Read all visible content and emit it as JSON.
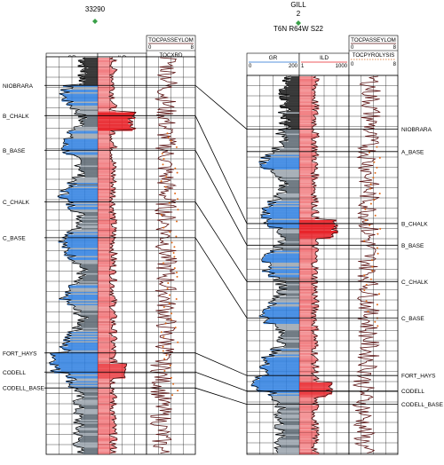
{
  "wells": [
    {
      "id": "well-1",
      "labels": [
        "33290"
      ],
      "tracks": {
        "gr": {
          "label": "GR",
          "min": "0",
          "max": "200"
        },
        "ild": {
          "label": "ILD",
          "min": "1",
          "max": "1000"
        },
        "toc_top": {
          "label": "TOCPASSEYLOM",
          "min": "0",
          "max": "8"
        },
        "toc_bottom": {
          "label": "TOCXRD",
          "min": "0",
          "max": "8"
        }
      },
      "tops": [
        {
          "name": "NIOBRARA",
          "depth": 0.072
        },
        {
          "name": "B_CHALK",
          "depth": 0.148
        },
        {
          "name": "B_BASE",
          "depth": 0.235
        },
        {
          "name": "C_CHALK",
          "depth": 0.365
        },
        {
          "name": "C_BASE",
          "depth": 0.455
        },
        {
          "name": "FORT_HAYS",
          "depth": 0.745
        },
        {
          "name": "CODELL",
          "depth": 0.793
        },
        {
          "name": "CODELL_BASE",
          "depth": 0.833
        }
      ]
    },
    {
      "id": "well-2",
      "labels": [
        "GILL",
        "2",
        "T6N R64W S22"
      ],
      "tracks": {
        "gr": {
          "label": "GR",
          "min": "0",
          "max": "200"
        },
        "ild": {
          "label": "ILD",
          "min": "1",
          "max": "1000"
        },
        "toc_top": {
          "label": "TOCPASSEYLOM",
          "min": "0",
          "max": "8"
        },
        "toc_bottom": {
          "label": "TOCPYROLYSIS",
          "min": "0",
          "max": "8"
        }
      },
      "tops": [
        {
          "name": "NIOBRARA",
          "depth": 0.142
        },
        {
          "name": "A_BASE",
          "depth": 0.201
        },
        {
          "name": "B_CHALK",
          "depth": 0.391
        },
        {
          "name": "B_BASE",
          "depth": 0.448
        },
        {
          "name": "C_CHALK",
          "depth": 0.544
        },
        {
          "name": "C_BASE",
          "depth": 0.64
        },
        {
          "name": "FORT_HAYS",
          "depth": 0.792
        },
        {
          "name": "CODELL",
          "depth": 0.833
        },
        {
          "name": "CODELL_BASE",
          "depth": 0.868
        }
      ]
    }
  ],
  "colors": {
    "gr_fill_low": "#2e7fe0",
    "gr_fill_high": "#1a1a1a",
    "gr_mid": "#9aa3ad",
    "ild": "#e8242a",
    "toc_curve": "#5a1010",
    "toc_points": "#e06a1a",
    "marker": "#3aa048"
  },
  "chart_data": {
    "type": "line",
    "title": "",
    "xlabel": "",
    "ylabel": "",
    "correlation": [
      {
        "top": "NIOBRARA",
        "well_1": 0.072,
        "well_2": 0.142
      },
      {
        "top": "B_CHALK",
        "well_1": 0.148,
        "well_2": 0.391
      },
      {
        "top": "B_BASE",
        "well_1": 0.235,
        "well_2": 0.448
      },
      {
        "top": "C_CHALK",
        "well_1": 0.365,
        "well_2": 0.544
      },
      {
        "top": "C_BASE",
        "well_1": 0.455,
        "well_2": 0.64
      },
      {
        "top": "FORT_HAYS",
        "well_1": 0.745,
        "well_2": 0.792
      },
      {
        "top": "CODELL",
        "well_1": 0.793,
        "well_2": 0.833
      },
      {
        "top": "CODELL_BASE",
        "well_1": 0.833,
        "well_2": 0.868
      }
    ]
  }
}
